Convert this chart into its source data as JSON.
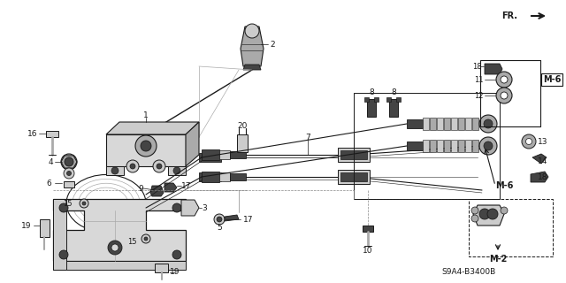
{
  "bg_color": "#ffffff",
  "line_color": "#1a1a1a",
  "diagram_code": "S9A4-B3400B",
  "fig_width": 6.4,
  "fig_height": 3.2,
  "dpi": 100
}
